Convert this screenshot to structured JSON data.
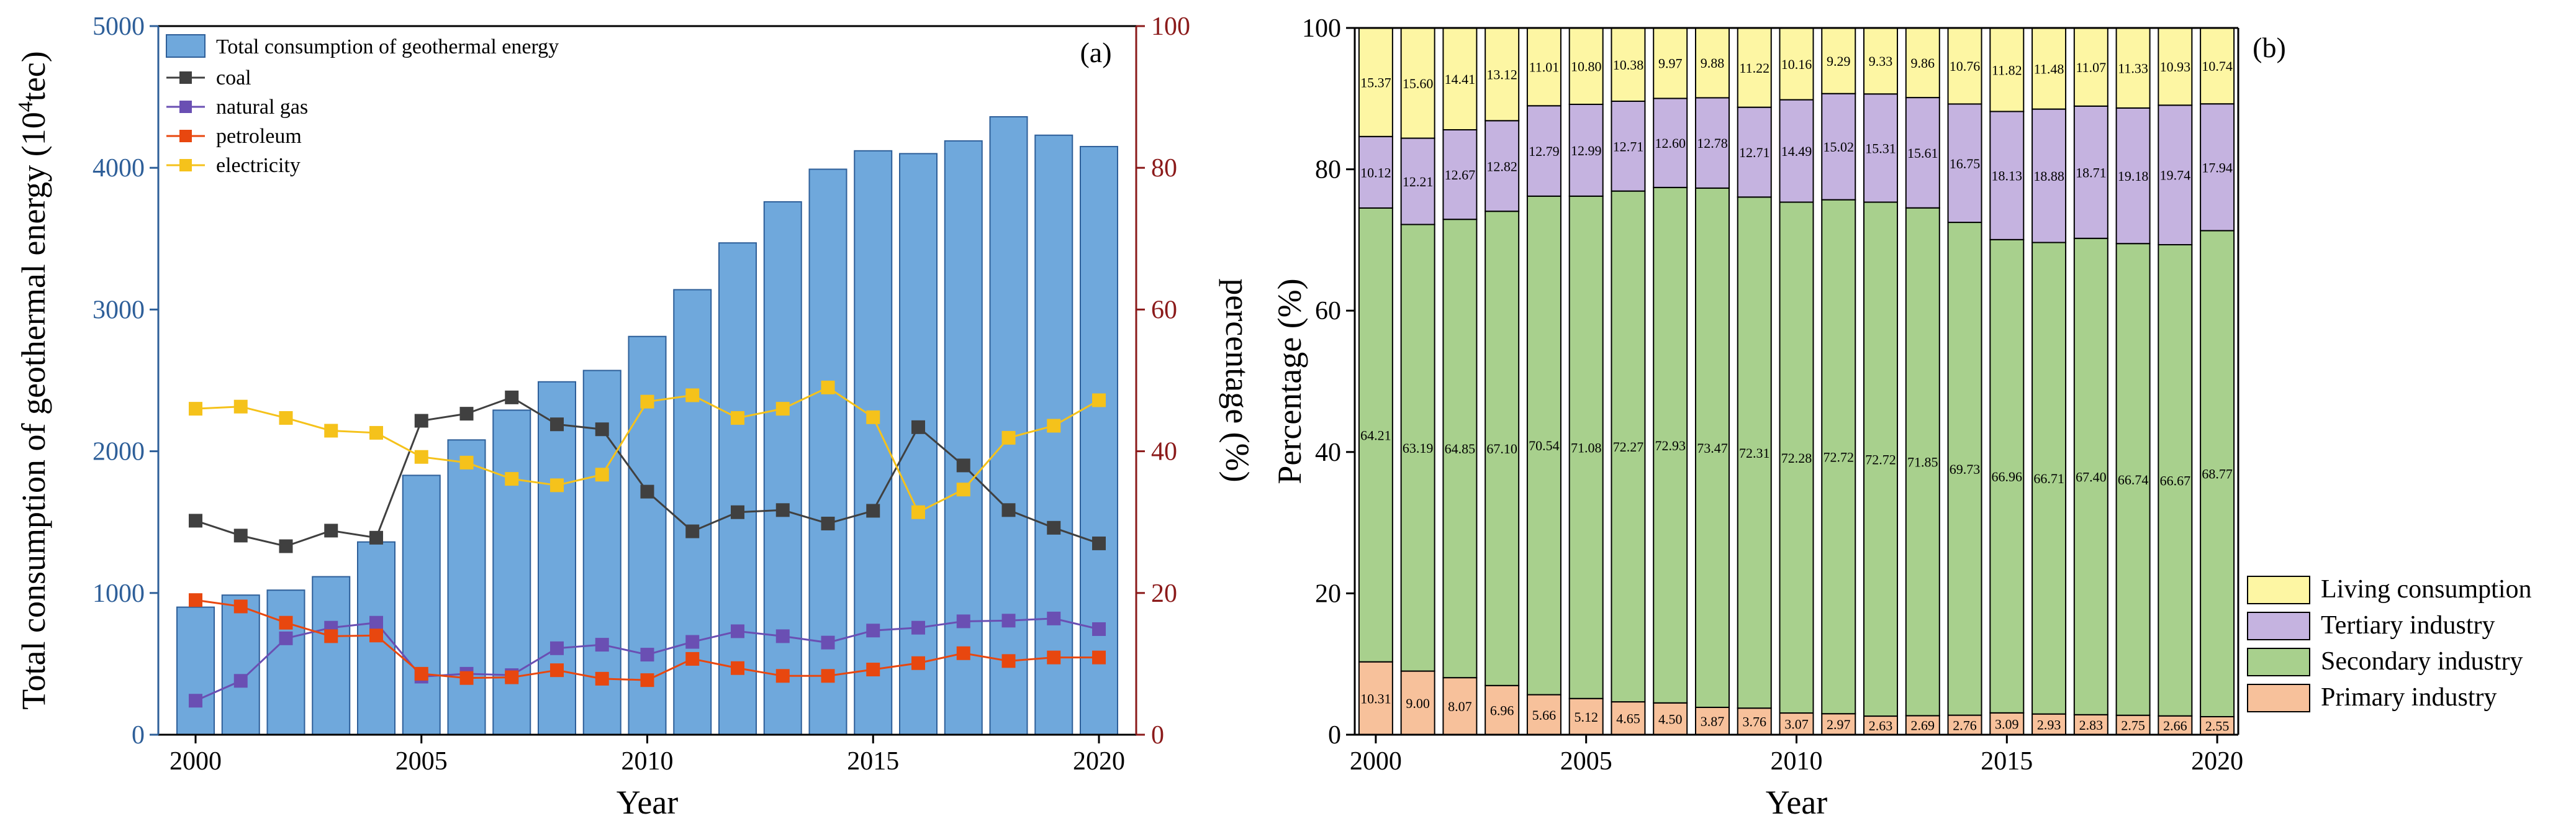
{
  "chart_data": [
    {
      "type": "bar+line",
      "panel_label": "(a)",
      "x": [
        2000,
        2001,
        2002,
        2003,
        2004,
        2005,
        2006,
        2007,
        2008,
        2009,
        2010,
        2011,
        2012,
        2013,
        2014,
        2015,
        2016,
        2017,
        2018,
        2019,
        2020
      ],
      "x_ticks": [
        2000,
        2005,
        2010,
        2015,
        2020
      ],
      "x_ticks_text": [
        "2000",
        "2005",
        "2010",
        "2015",
        "2020"
      ],
      "xlabel": "Year",
      "ylabel_left": "Total consumption of geothermal energy (10",
      "ylabel_left_sup": "4",
      "ylabel_left_suffix": "tec)",
      "ylim_left": [
        0,
        5000
      ],
      "left_ticks": [
        0,
        1000,
        2000,
        3000,
        4000,
        5000
      ],
      "left_ticks_text": [
        "0",
        "1000",
        "2000",
        "3000",
        "4000",
        "5000"
      ],
      "ylabel_right": "percentage (%)",
      "ylim_right": [
        0,
        100
      ],
      "right_ticks": [
        0,
        20,
        40,
        60,
        80,
        100
      ],
      "right_ticks_text": [
        "0",
        "20",
        "40",
        "60",
        "80",
        "100"
      ],
      "bar_series": {
        "name": "Total consumption of geothermal energy",
        "values": [
          900,
          985,
          1020,
          1115,
          1360,
          1830,
          2080,
          2290,
          2490,
          2570,
          2810,
          3140,
          3470,
          3760,
          3990,
          4120,
          4100,
          4190,
          4360,
          4230,
          4150
        ]
      },
      "line_series": [
        {
          "name": "coal",
          "values": [
            30.2,
            28.1,
            26.6,
            28.8,
            27.8,
            44.3,
            45.3,
            47.6,
            43.8,
            43.1,
            34.3,
            28.7,
            31.4,
            31.7,
            29.8,
            31.6,
            43.4,
            38.0,
            31.7,
            29.2,
            27.0
          ]
        },
        {
          "name": "natural gas",
          "values": [
            4.8,
            7.6,
            13.6,
            15.1,
            15.8,
            8.2,
            8.6,
            8.4,
            12.2,
            12.7,
            11.3,
            13.1,
            14.6,
            13.9,
            13.0,
            14.7,
            15.1,
            16.0,
            16.1,
            16.4,
            14.9
          ]
        },
        {
          "name": "petroleum",
          "values": [
            19.0,
            18.1,
            15.8,
            13.9,
            14.0,
            8.6,
            8.0,
            8.1,
            9.1,
            7.9,
            7.7,
            10.7,
            9.4,
            8.3,
            8.3,
            9.2,
            10.1,
            11.5,
            10.4,
            10.9,
            10.9
          ]
        },
        {
          "name": "electricity",
          "values": [
            46.0,
            46.3,
            44.7,
            42.9,
            42.6,
            39.2,
            38.4,
            36.1,
            35.2,
            36.7,
            47.0,
            47.9,
            44.7,
            46.0,
            49.0,
            44.8,
            31.4,
            34.6,
            41.9,
            43.6,
            47.2
          ]
        }
      ],
      "colors": {
        "bar": "#6fa8dc",
        "bar_stroke": "#2e5f99",
        "coal": "#404040",
        "natural gas": "#6a4fb3",
        "petroleum": "#e8470f",
        "electricity": "#f5c21b",
        "left_axis": "#2e5f99",
        "right_axis": "#8b1a1a"
      }
    },
    {
      "type": "stacked-bar",
      "panel_label": "(b)",
      "x": [
        2000,
        2001,
        2002,
        2003,
        2004,
        2005,
        2006,
        2007,
        2008,
        2009,
        2010,
        2011,
        2012,
        2013,
        2014,
        2015,
        2016,
        2017,
        2018,
        2019,
        2020
      ],
      "x_ticks": [
        2000,
        2005,
        2010,
        2015,
        2020
      ],
      "x_ticks_text": [
        "2000",
        "2005",
        "2010",
        "2015",
        "2020"
      ],
      "xlabel": "Year",
      "ylabel": "Percentage (%)",
      "ylim": [
        0,
        100
      ],
      "y_ticks": [
        0,
        20,
        40,
        60,
        80,
        100
      ],
      "y_ticks_text": [
        "0",
        "20",
        "40",
        "60",
        "80",
        "100"
      ],
      "series": [
        {
          "name": "Primary industry",
          "color": "#f7c19b",
          "values": [
            10.31,
            9.0,
            8.07,
            6.96,
            5.66,
            5.12,
            4.65,
            4.5,
            3.87,
            3.76,
            3.07,
            2.97,
            2.63,
            2.69,
            2.76,
            3.09,
            2.93,
            2.83,
            2.75,
            2.66,
            2.55
          ],
          "labels": [
            "10.31",
            "9.00",
            "8.07",
            "6.96",
            "5.66",
            "5.12",
            "4.65",
            "4.50",
            "3.87",
            "3.76",
            "3.07",
            "2.97",
            "2.63",
            "2.69",
            "2.76",
            "3.09",
            "2.93",
            "2.83",
            "2.75",
            "2.66",
            "2.55"
          ]
        },
        {
          "name": "Secondary industry",
          "color": "#a8d08d",
          "values": [
            64.21,
            63.19,
            64.85,
            67.1,
            70.54,
            71.08,
            72.27,
            72.93,
            73.47,
            72.31,
            72.28,
            72.72,
            72.72,
            71.85,
            69.73,
            66.96,
            66.71,
            67.4,
            66.74,
            66.67,
            68.77
          ],
          "labels": [
            "64.21",
            "63.19",
            "64.85",
            "67.10",
            "70.54",
            "71.08",
            "72.27",
            "72.93",
            "73.47",
            "72.31",
            "72.28",
            "72.72",
            "72.72",
            "71.85",
            "69.73",
            "66.96",
            "66.71",
            "67.40",
            "66.74",
            "66.67",
            "68.77"
          ]
        },
        {
          "name": "Tertiary industry",
          "color": "#c5b3e0",
          "values": [
            10.12,
            12.21,
            12.67,
            12.82,
            12.79,
            12.99,
            12.71,
            12.6,
            12.78,
            12.71,
            14.49,
            15.02,
            15.31,
            15.61,
            16.75,
            18.13,
            18.88,
            18.71,
            19.18,
            19.74,
            17.94
          ],
          "labels": [
            "10.12",
            "12.21",
            "12.67",
            "12.82",
            "12.79",
            "12.99",
            "12.71",
            "12.60",
            "12.78",
            "12.71",
            "14.49",
            "15.02",
            "15.31",
            "15.61",
            "16.75",
            "18.13",
            "18.88",
            "18.71",
            "19.18",
            "19.74",
            "17.94"
          ]
        },
        {
          "name": "Living consumption",
          "color": "#fdf6a3",
          "values": [
            15.37,
            15.6,
            14.41,
            13.12,
            11.01,
            10.8,
            10.38,
            9.97,
            9.88,
            11.22,
            10.16,
            9.29,
            9.33,
            9.86,
            10.76,
            11.82,
            11.48,
            11.07,
            11.33,
            10.93,
            10.74
          ],
          "labels": [
            "15.37",
            "15.60",
            "14.41",
            "13.12",
            "11.01",
            "10.80",
            "10.38",
            "9.97",
            "9.88",
            "11.22",
            "10.16",
            "9.29",
            "9.33",
            "9.86",
            "10.76",
            "11.82",
            "11.48",
            "11.07",
            "11.33",
            "10.93",
            "10.74"
          ]
        }
      ],
      "legend_order": [
        "Living consumption",
        "Tertiary industry",
        "Secondary industry",
        "Primary industry"
      ]
    }
  ]
}
